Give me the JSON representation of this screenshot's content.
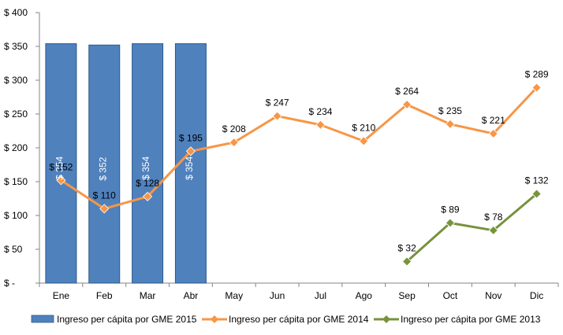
{
  "chart_data": {
    "type": "bar",
    "title": "",
    "xlabel": "",
    "ylabel": "",
    "categories": [
      "Ene",
      "Feb",
      "Mar",
      "Abr",
      "May",
      "Jun",
      "Jul",
      "Ago",
      "Sep",
      "Oct",
      "Nov",
      "Dic"
    ],
    "y_ticks": [
      "$ -",
      "$ 50",
      "$ 100",
      "$ 150",
      "$ 200",
      "$ 250",
      "$ 300",
      "$ 350",
      "$ 400"
    ],
    "ylim": [
      0,
      400
    ],
    "grid": false,
    "legend_position": "bottom",
    "series": [
      {
        "name": "Ingreso per cápita por GME 2015",
        "type": "bar",
        "color": "#4F81BD",
        "values": [
          354,
          352,
          354,
          354,
          null,
          null,
          null,
          null,
          null,
          null,
          null,
          null
        ],
        "labels": [
          "$ 354",
          "$ 352",
          "$ 354",
          "$ 354",
          "",
          "",
          "",
          "",
          "",
          "",
          "",
          ""
        ]
      },
      {
        "name": "Ingreso per cápita por GME 2014",
        "type": "line",
        "color": "#F79646",
        "values": [
          152,
          110,
          128,
          195,
          208,
          247,
          234,
          210,
          264,
          235,
          221,
          289
        ],
        "labels": [
          "$ 152",
          "$ 110",
          "$ 128",
          "$ 195",
          "$ 208",
          "$ 247",
          "$ 234",
          "$ 210",
          "$ 264",
          "$ 235",
          "$ 221",
          "$ 289"
        ]
      },
      {
        "name": "Ingreso per cápita por GME 2013",
        "type": "line",
        "color": "#77933C",
        "values": [
          null,
          null,
          null,
          null,
          null,
          null,
          null,
          null,
          32,
          89,
          78,
          132
        ],
        "labels": [
          "",
          "",
          "",
          "",
          "",
          "",
          "",
          "",
          "$ 32",
          "$ 89",
          "$ 78",
          "$ 132"
        ]
      }
    ]
  }
}
